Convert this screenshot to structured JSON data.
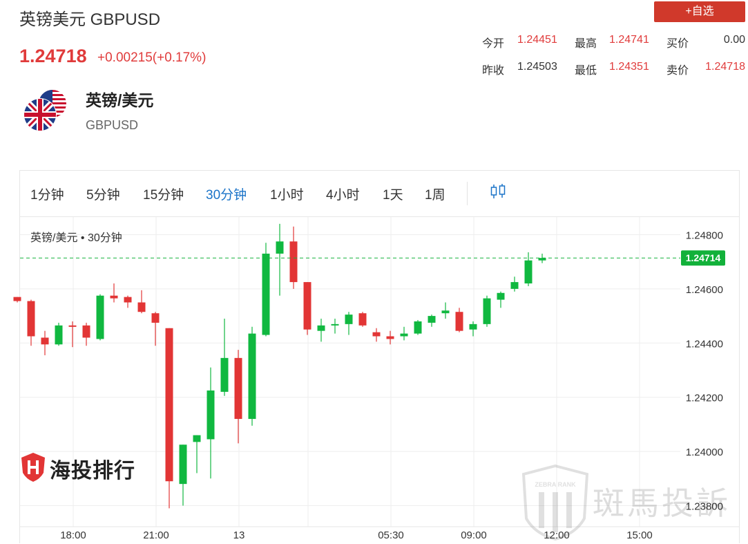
{
  "header": {
    "title": "英镑美元 GBPUSD",
    "price": "1.24718",
    "change": "+0.00215(+0.17%)",
    "add_button": "+自选"
  },
  "quotes": [
    {
      "label": "今开",
      "value": "1.24451",
      "color": "#e03b3b"
    },
    {
      "label": "最高",
      "value": "1.24741",
      "color": "#e03b3b"
    },
    {
      "label": "买价",
      "value": "0.00",
      "color": "#333333"
    },
    {
      "label": "昨收",
      "value": "1.24503",
      "color": "#333333"
    },
    {
      "label": "最低",
      "value": "1.24351",
      "color": "#e03b3b"
    },
    {
      "label": "卖价",
      "value": "1.24718",
      "color": "#e03b3b"
    }
  ],
  "pair": {
    "name": "英镑/美元",
    "code": "GBPUSD"
  },
  "tabs": [
    "1分钟",
    "5分钟",
    "15分钟",
    "30分钟",
    "1小时",
    "4小时",
    "1天",
    "1周"
  ],
  "active_tab": "30分钟",
  "chart_caption": "英镑/美元 • 30分钟",
  "watermarks": {
    "left": "海投排行",
    "right": "斑馬投訴",
    "badge": "ZEBRA RANK"
  },
  "colors": {
    "up": "#10b840",
    "down": "#e23535",
    "accent": "#d0392b",
    "active_tab": "#1a73c8",
    "last_price_bg": "#12b13a"
  },
  "chart_data": {
    "type": "candlestick",
    "title": "英镑/美元 • 30分钟",
    "ylim": [
      1.2377,
      1.2484
    ],
    "yticks": [
      "1.24800",
      "1.24600",
      "1.24400",
      "1.24200",
      "1.24000",
      "1.23800"
    ],
    "xticks": [
      "18:00",
      "21:00",
      "13",
      "05:30",
      "09:00",
      "12:00",
      "15:00"
    ],
    "last_price": "1.24714",
    "grid": true,
    "candles": [
      {
        "open": 1.2457,
        "high": 1.2457,
        "low": 1.2455,
        "close": 1.24555
      },
      {
        "open": 1.24555,
        "high": 1.2456,
        "low": 1.2439,
        "close": 1.24425
      },
      {
        "open": 1.2442,
        "high": 1.24445,
        "low": 1.24355,
        "close": 1.24395
      },
      {
        "open": 1.24395,
        "high": 1.24475,
        "low": 1.2439,
        "close": 1.24465
      },
      {
        "open": 1.24465,
        "high": 1.2448,
        "low": 1.24385,
        "close": 1.2446
      },
      {
        "open": 1.24465,
        "high": 1.24475,
        "low": 1.2439,
        "close": 1.2442
      },
      {
        "open": 1.24415,
        "high": 1.2458,
        "low": 1.2441,
        "close": 1.24575
      },
      {
        "open": 1.24575,
        "high": 1.2462,
        "low": 1.2455,
        "close": 1.24565
      },
      {
        "open": 1.2457,
        "high": 1.24575,
        "low": 1.2453,
        "close": 1.2455
      },
      {
        "open": 1.2455,
        "high": 1.24595,
        "low": 1.2451,
        "close": 1.24515
      },
      {
        "open": 1.2451,
        "high": 1.24515,
        "low": 1.2439,
        "close": 1.24475
      },
      {
        "open": 1.24455,
        "high": 1.24455,
        "low": 1.2379,
        "close": 1.2389
      },
      {
        "open": 1.2388,
        "high": 1.24025,
        "low": 1.238,
        "close": 1.24025
      },
      {
        "open": 1.24035,
        "high": 1.2406,
        "low": 1.2392,
        "close": 1.2406
      },
      {
        "open": 1.24045,
        "high": 1.2431,
        "low": 1.239,
        "close": 1.24225
      },
      {
        "open": 1.2422,
        "high": 1.2449,
        "low": 1.24205,
        "close": 1.24345
      },
      {
        "open": 1.24345,
        "high": 1.24375,
        "low": 1.2403,
        "close": 1.2412
      },
      {
        "open": 1.2412,
        "high": 1.2446,
        "low": 1.24095,
        "close": 1.24435
      },
      {
        "open": 1.2443,
        "high": 1.2477,
        "low": 1.24425,
        "close": 1.2473
      },
      {
        "open": 1.2473,
        "high": 1.2484,
        "low": 1.24575,
        "close": 1.24775
      },
      {
        "open": 1.24775,
        "high": 1.2483,
        "low": 1.246,
        "close": 1.24625
      },
      {
        "open": 1.24625,
        "high": 1.24625,
        "low": 1.2443,
        "close": 1.2445
      },
      {
        "open": 1.24445,
        "high": 1.2449,
        "low": 1.24405,
        "close": 1.24465
      },
      {
        "open": 1.24465,
        "high": 1.2449,
        "low": 1.24435,
        "close": 1.2447
      },
      {
        "open": 1.2447,
        "high": 1.24515,
        "low": 1.2443,
        "close": 1.24505
      },
      {
        "open": 1.2451,
        "high": 1.24515,
        "low": 1.2446,
        "close": 1.24465
      },
      {
        "open": 1.2444,
        "high": 1.24455,
        "low": 1.24405,
        "close": 1.24425
      },
      {
        "open": 1.24425,
        "high": 1.24445,
        "low": 1.24395,
        "close": 1.24415
      },
      {
        "open": 1.24425,
        "high": 1.2446,
        "low": 1.2441,
        "close": 1.24435
      },
      {
        "open": 1.24435,
        "high": 1.24485,
        "low": 1.2443,
        "close": 1.2448
      },
      {
        "open": 1.24475,
        "high": 1.24505,
        "low": 1.2446,
        "close": 1.245
      },
      {
        "open": 1.2451,
        "high": 1.2455,
        "low": 1.2449,
        "close": 1.2452
      },
      {
        "open": 1.24515,
        "high": 1.2453,
        "low": 1.2444,
        "close": 1.24445
      },
      {
        "open": 1.2445,
        "high": 1.2448,
        "low": 1.24425,
        "close": 1.2447
      },
      {
        "open": 1.2447,
        "high": 1.24575,
        "low": 1.2446,
        "close": 1.24565
      },
      {
        "open": 1.2456,
        "high": 1.2459,
        "low": 1.2453,
        "close": 1.24585
      },
      {
        "open": 1.246,
        "high": 1.24645,
        "low": 1.2459,
        "close": 1.24625
      },
      {
        "open": 1.2462,
        "high": 1.24735,
        "low": 1.2461,
        "close": 1.24705
      },
      {
        "open": 1.24705,
        "high": 1.2473,
        "low": 1.24695,
        "close": 1.24714
      }
    ]
  }
}
